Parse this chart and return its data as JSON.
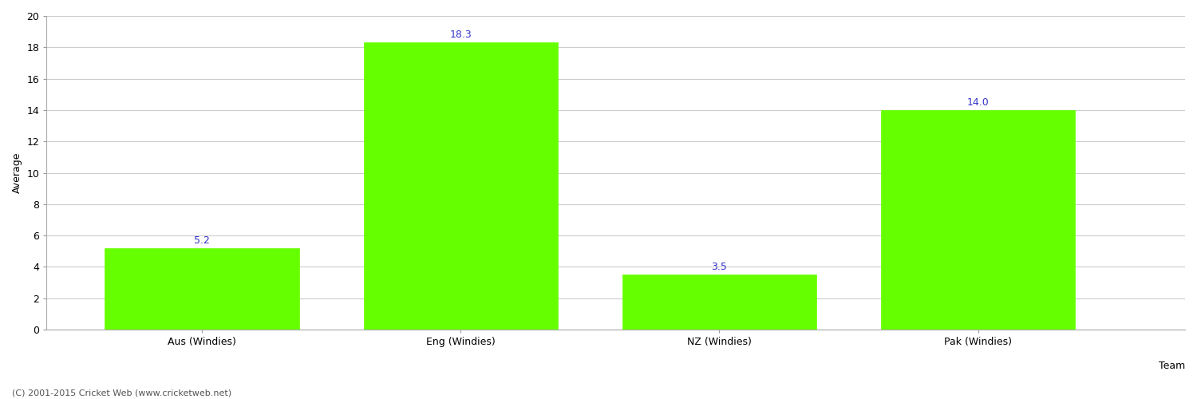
{
  "categories": [
    "Aus (Windies)",
    "Eng (Windies)",
    "NZ (Windies)",
    "Pak (Windies)"
  ],
  "values": [
    5.2,
    18.3,
    3.5,
    14.0
  ],
  "bar_color": "#66ff00",
  "bar_edge_color": "#66ff00",
  "xlabel": "Team",
  "ylabel": "Average",
  "ylim": [
    0,
    20
  ],
  "yticks": [
    0,
    2,
    4,
    6,
    8,
    10,
    12,
    14,
    16,
    18,
    20
  ],
  "label_color": "#3333cc",
  "label_fontsize": 9,
  "tick_fontsize": 9,
  "xlabel_fontsize": 9,
  "ylabel_fontsize": 9,
  "grid_color": "#cccccc",
  "background_color": "#ffffff",
  "footer_text": "(C) 2001-2015 Cricket Web (www.cricketweb.net)",
  "footer_fontsize": 8,
  "footer_color": "#555555"
}
